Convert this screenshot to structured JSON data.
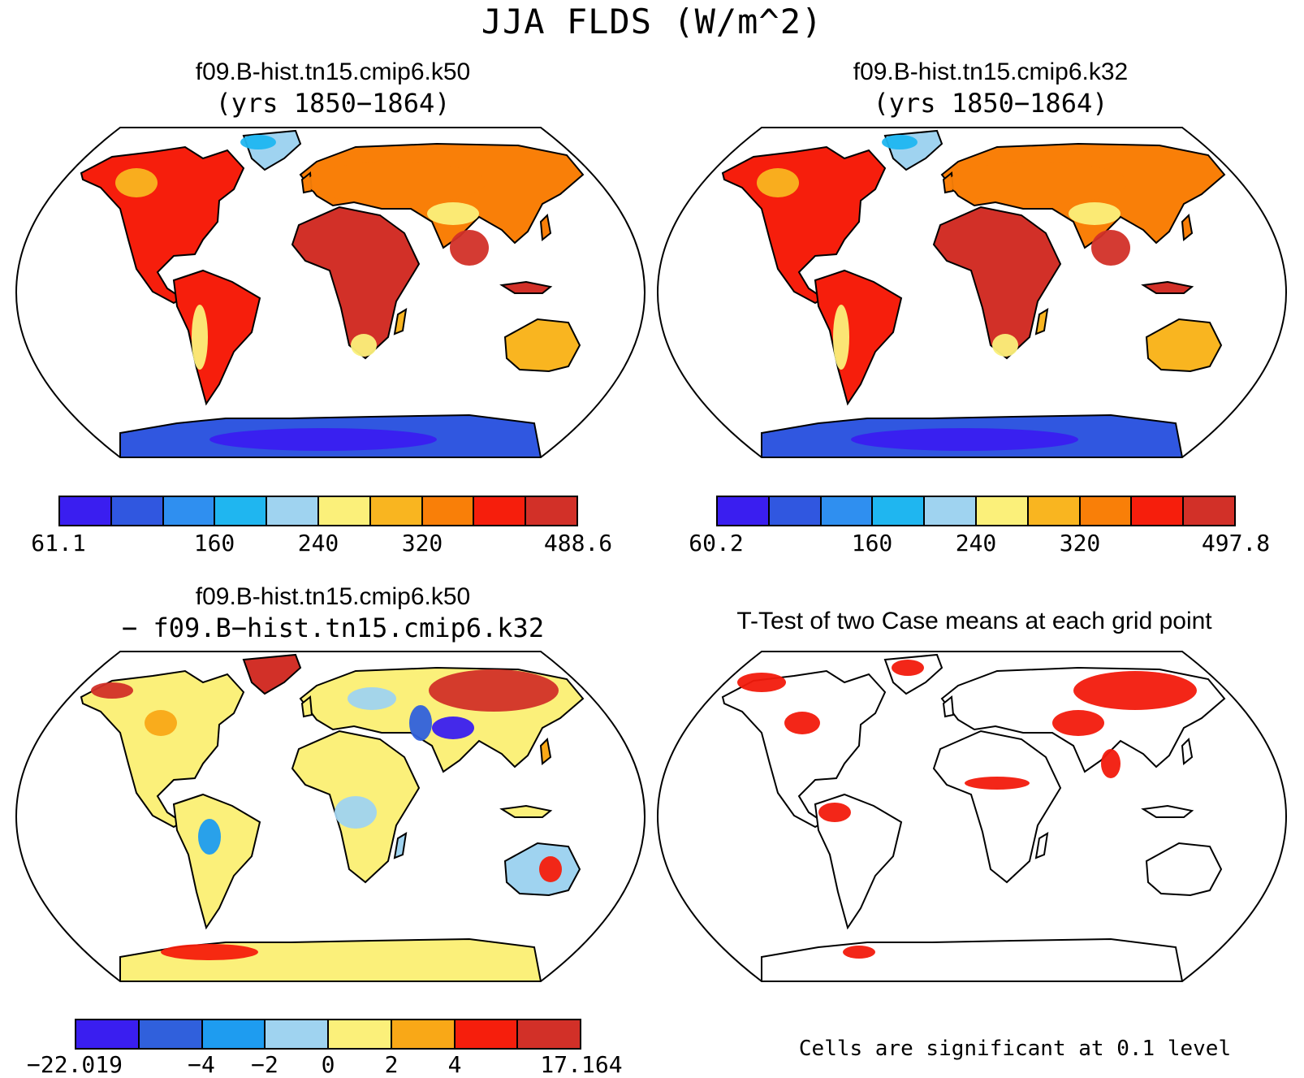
{
  "main_title": "JJA FLDS (W/m^2)",
  "panels": {
    "p1": {
      "title": "f09.B-hist.tn15.cmip6.k50",
      "subtitle": "(yrs 1850−1864)"
    },
    "p2": {
      "title": "f09.B-hist.tn15.cmip6.k32",
      "subtitle": "(yrs 1850−1864)"
    },
    "p3": {
      "title": "f09.B-hist.tn15.cmip6.k50",
      "subtitle": "− f09.B−hist.tn15.cmip6.k32"
    },
    "p4": {
      "title": "T-Test of two Case means at each grid point",
      "note": "Cells are significant at 0.1 level"
    }
  },
  "colorbars": {
    "cb1": {
      "labels": [
        "61.1",
        "160",
        "240",
        "320",
        "488.6"
      ]
    },
    "cb2": {
      "labels": [
        "60.2",
        "160",
        "240",
        "320",
        "497.8"
      ]
    },
    "cb3": {
      "labels": [
        "−22.019",
        "−4",
        "−2",
        "0",
        "2",
        "4",
        "17.164"
      ]
    }
  },
  "colors": {
    "abs_palette": [
      "#3a1ef0",
      "#3057e0",
      "#2f8ff0",
      "#1fb6f0",
      "#9fd3f0",
      "#fbf07a",
      "#f9b520",
      "#f97f08",
      "#f61e0c",
      "#d23028"
    ],
    "diff_palette": [
      "#3a1ef0",
      "#3060dc",
      "#1e9cf0",
      "#9fd3f0",
      "#fbf07a",
      "#f9a817",
      "#f61e0c",
      "#d23028"
    ],
    "significant": "#f21a0c",
    "land_outline": "#000000"
  }
}
